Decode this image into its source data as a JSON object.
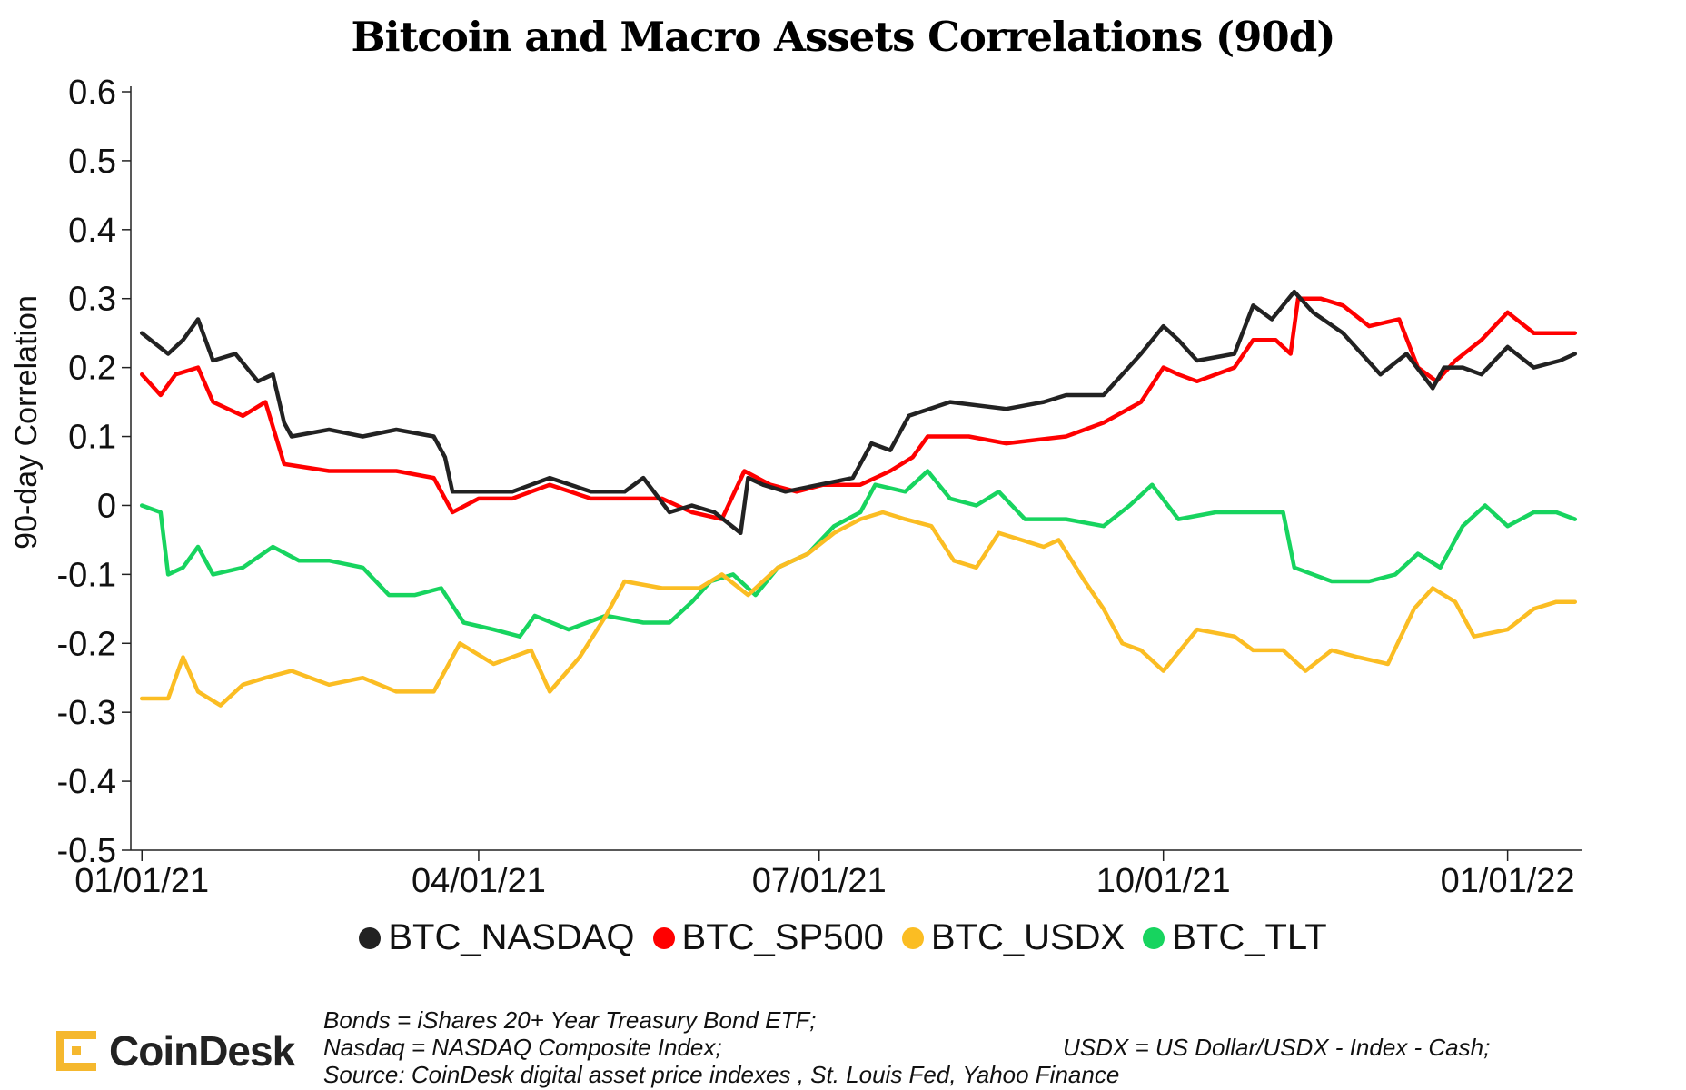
{
  "chart_data": {
    "type": "line",
    "title": "Bitcoin and Macro Assets Correlations (90d)",
    "ylabel": "90-day Correlation",
    "xlabel": "",
    "ylim": [
      -0.5,
      0.6
    ],
    "xlim": [
      "2020-12-30",
      "2022-01-21"
    ],
    "grid": false,
    "legend_position": "bottom",
    "y_ticks": [
      "0.6",
      "0.5",
      "0.4",
      "0.3",
      "0.2",
      "0.1",
      "0",
      "-0.1",
      "-0.2",
      "-0.3",
      "-0.4",
      "-0.5"
    ],
    "y_tick_values": [
      0.6,
      0.5,
      0.4,
      0.3,
      0.2,
      0.1,
      0,
      -0.1,
      -0.2,
      -0.3,
      -0.4,
      -0.5
    ],
    "x_ticks": [
      "01/01/21",
      "04/01/21",
      "07/01/21",
      "10/01/21",
      "01/01/22"
    ],
    "x_tick_dates": [
      "2021-01-01",
      "2021-04-01",
      "2021-07-01",
      "2021-10-01",
      "2022-01-01"
    ],
    "series": [
      {
        "name": "BTC_NASDAQ",
        "color": "#222222",
        "points": [
          [
            "2021-01-01",
            0.25
          ],
          [
            "2021-01-08",
            0.22
          ],
          [
            "2021-01-12",
            0.24
          ],
          [
            "2021-01-16",
            0.27
          ],
          [
            "2021-01-20",
            0.21
          ],
          [
            "2021-01-26",
            0.22
          ],
          [
            "2021-02-01",
            0.18
          ],
          [
            "2021-02-05",
            0.19
          ],
          [
            "2021-02-08",
            0.12
          ],
          [
            "2021-02-10",
            0.1
          ],
          [
            "2021-02-20",
            0.11
          ],
          [
            "2021-03-01",
            0.1
          ],
          [
            "2021-03-10",
            0.11
          ],
          [
            "2021-03-20",
            0.1
          ],
          [
            "2021-03-23",
            0.07
          ],
          [
            "2021-03-25",
            0.02
          ],
          [
            "2021-04-01",
            0.02
          ],
          [
            "2021-04-10",
            0.02
          ],
          [
            "2021-04-20",
            0.04
          ],
          [
            "2021-05-01",
            0.02
          ],
          [
            "2021-05-10",
            0.02
          ],
          [
            "2021-05-15",
            0.04
          ],
          [
            "2021-05-22",
            -0.01
          ],
          [
            "2021-05-28",
            0.0
          ],
          [
            "2021-06-03",
            -0.01
          ],
          [
            "2021-06-10",
            -0.04
          ],
          [
            "2021-06-12",
            0.04
          ],
          [
            "2021-06-16",
            0.03
          ],
          [
            "2021-06-22",
            0.02
          ],
          [
            "2021-07-01",
            0.03
          ],
          [
            "2021-07-10",
            0.04
          ],
          [
            "2021-07-15",
            0.09
          ],
          [
            "2021-07-20",
            0.08
          ],
          [
            "2021-07-25",
            0.13
          ],
          [
            "2021-08-05",
            0.15
          ],
          [
            "2021-08-20",
            0.14
          ],
          [
            "2021-08-30",
            0.15
          ],
          [
            "2021-09-05",
            0.16
          ],
          [
            "2021-09-15",
            0.16
          ],
          [
            "2021-09-25",
            0.22
          ],
          [
            "2021-10-01",
            0.26
          ],
          [
            "2021-10-05",
            0.24
          ],
          [
            "2021-10-10",
            0.21
          ],
          [
            "2021-10-20",
            0.22
          ],
          [
            "2021-10-25",
            0.29
          ],
          [
            "2021-10-30",
            0.27
          ],
          [
            "2021-11-05",
            0.31
          ],
          [
            "2021-11-10",
            0.28
          ],
          [
            "2021-11-18",
            0.25
          ],
          [
            "2021-11-28",
            0.19
          ],
          [
            "2021-12-05",
            0.22
          ],
          [
            "2021-12-12",
            0.17
          ],
          [
            "2021-12-15",
            0.2
          ],
          [
            "2021-12-20",
            0.2
          ],
          [
            "2021-12-25",
            0.19
          ],
          [
            "2022-01-01",
            0.23
          ],
          [
            "2022-01-08",
            0.2
          ],
          [
            "2022-01-15",
            0.21
          ],
          [
            "2022-01-19",
            0.22
          ]
        ]
      },
      {
        "name": "BTC_SP500",
        "color": "#ff0000",
        "points": [
          [
            "2021-01-01",
            0.19
          ],
          [
            "2021-01-06",
            0.16
          ],
          [
            "2021-01-10",
            0.19
          ],
          [
            "2021-01-16",
            0.2
          ],
          [
            "2021-01-20",
            0.15
          ],
          [
            "2021-01-28",
            0.13
          ],
          [
            "2021-02-03",
            0.15
          ],
          [
            "2021-02-08",
            0.06
          ],
          [
            "2021-02-20",
            0.05
          ],
          [
            "2021-03-01",
            0.05
          ],
          [
            "2021-03-10",
            0.05
          ],
          [
            "2021-03-20",
            0.04
          ],
          [
            "2021-03-25",
            -0.01
          ],
          [
            "2021-04-01",
            0.01
          ],
          [
            "2021-04-10",
            0.01
          ],
          [
            "2021-04-20",
            0.03
          ],
          [
            "2021-05-01",
            0.01
          ],
          [
            "2021-05-10",
            0.01
          ],
          [
            "2021-05-20",
            0.01
          ],
          [
            "2021-05-28",
            -0.01
          ],
          [
            "2021-06-05",
            -0.02
          ],
          [
            "2021-06-11",
            0.05
          ],
          [
            "2021-06-18",
            0.03
          ],
          [
            "2021-06-25",
            0.02
          ],
          [
            "2021-07-02",
            0.03
          ],
          [
            "2021-07-12",
            0.03
          ],
          [
            "2021-07-20",
            0.05
          ],
          [
            "2021-07-26",
            0.07
          ],
          [
            "2021-07-30",
            0.1
          ],
          [
            "2021-08-10",
            0.1
          ],
          [
            "2021-08-20",
            0.09
          ],
          [
            "2021-09-05",
            0.1
          ],
          [
            "2021-09-15",
            0.12
          ],
          [
            "2021-09-25",
            0.15
          ],
          [
            "2021-10-01",
            0.2
          ],
          [
            "2021-10-05",
            0.19
          ],
          [
            "2021-10-10",
            0.18
          ],
          [
            "2021-10-20",
            0.2
          ],
          [
            "2021-10-25",
            0.24
          ],
          [
            "2021-10-31",
            0.24
          ],
          [
            "2021-11-04",
            0.22
          ],
          [
            "2021-11-06",
            0.3
          ],
          [
            "2021-11-12",
            0.3
          ],
          [
            "2021-11-18",
            0.29
          ],
          [
            "2021-11-25",
            0.26
          ],
          [
            "2021-12-03",
            0.27
          ],
          [
            "2021-12-08",
            0.2
          ],
          [
            "2021-12-13",
            0.18
          ],
          [
            "2021-12-18",
            0.21
          ],
          [
            "2021-12-25",
            0.24
          ],
          [
            "2022-01-01",
            0.28
          ],
          [
            "2022-01-08",
            0.25
          ],
          [
            "2022-01-15",
            0.25
          ],
          [
            "2022-01-19",
            0.25
          ]
        ]
      },
      {
        "name": "BTC_USDX",
        "color": "#fbbd23",
        "points": [
          [
            "2021-01-01",
            -0.28
          ],
          [
            "2021-01-08",
            -0.28
          ],
          [
            "2021-01-12",
            -0.22
          ],
          [
            "2021-01-16",
            -0.27
          ],
          [
            "2021-01-22",
            -0.29
          ],
          [
            "2021-01-28",
            -0.26
          ],
          [
            "2021-02-03",
            -0.25
          ],
          [
            "2021-02-10",
            -0.24
          ],
          [
            "2021-02-20",
            -0.26
          ],
          [
            "2021-03-01",
            -0.25
          ],
          [
            "2021-03-10",
            -0.27
          ],
          [
            "2021-03-20",
            -0.27
          ],
          [
            "2021-03-27",
            -0.2
          ],
          [
            "2021-04-05",
            -0.23
          ],
          [
            "2021-04-15",
            -0.21
          ],
          [
            "2021-04-20",
            -0.27
          ],
          [
            "2021-04-28",
            -0.22
          ],
          [
            "2021-05-05",
            -0.16
          ],
          [
            "2021-05-10",
            -0.11
          ],
          [
            "2021-05-20",
            -0.12
          ],
          [
            "2021-05-30",
            -0.12
          ],
          [
            "2021-06-05",
            -0.1
          ],
          [
            "2021-06-12",
            -0.13
          ],
          [
            "2021-06-20",
            -0.09
          ],
          [
            "2021-06-28",
            -0.07
          ],
          [
            "2021-07-05",
            -0.04
          ],
          [
            "2021-07-12",
            -0.02
          ],
          [
            "2021-07-18",
            -0.01
          ],
          [
            "2021-07-24",
            -0.02
          ],
          [
            "2021-07-31",
            -0.03
          ],
          [
            "2021-08-06",
            -0.08
          ],
          [
            "2021-08-12",
            -0.09
          ],
          [
            "2021-08-18",
            -0.04
          ],
          [
            "2021-08-24",
            -0.05
          ],
          [
            "2021-08-30",
            -0.06
          ],
          [
            "2021-09-03",
            -0.05
          ],
          [
            "2021-09-10",
            -0.11
          ],
          [
            "2021-09-15",
            -0.15
          ],
          [
            "2021-09-20",
            -0.2
          ],
          [
            "2021-09-25",
            -0.21
          ],
          [
            "2021-10-01",
            -0.24
          ],
          [
            "2021-10-10",
            -0.18
          ],
          [
            "2021-10-20",
            -0.19
          ],
          [
            "2021-10-25",
            -0.21
          ],
          [
            "2021-11-02",
            -0.21
          ],
          [
            "2021-11-08",
            -0.24
          ],
          [
            "2021-11-15",
            -0.21
          ],
          [
            "2021-11-22",
            -0.22
          ],
          [
            "2021-11-30",
            -0.23
          ],
          [
            "2021-12-07",
            -0.15
          ],
          [
            "2021-12-12",
            -0.12
          ],
          [
            "2021-12-18",
            -0.14
          ],
          [
            "2021-12-23",
            -0.19
          ],
          [
            "2022-01-01",
            -0.18
          ],
          [
            "2022-01-08",
            -0.15
          ],
          [
            "2022-01-14",
            -0.14
          ],
          [
            "2022-01-19",
            -0.14
          ]
        ]
      },
      {
        "name": "BTC_TLT",
        "color": "#17d45f",
        "points": [
          [
            "2021-01-01",
            0.0
          ],
          [
            "2021-01-06",
            -0.01
          ],
          [
            "2021-01-08",
            -0.1
          ],
          [
            "2021-01-12",
            -0.09
          ],
          [
            "2021-01-16",
            -0.06
          ],
          [
            "2021-01-20",
            -0.1
          ],
          [
            "2021-01-28",
            -0.09
          ],
          [
            "2021-02-05",
            -0.06
          ],
          [
            "2021-02-12",
            -0.08
          ],
          [
            "2021-02-20",
            -0.08
          ],
          [
            "2021-03-01",
            -0.09
          ],
          [
            "2021-03-08",
            -0.13
          ],
          [
            "2021-03-15",
            -0.13
          ],
          [
            "2021-03-22",
            -0.12
          ],
          [
            "2021-03-28",
            -0.17
          ],
          [
            "2021-04-05",
            -0.18
          ],
          [
            "2021-04-12",
            -0.19
          ],
          [
            "2021-04-16",
            -0.16
          ],
          [
            "2021-04-25",
            -0.18
          ],
          [
            "2021-05-05",
            -0.16
          ],
          [
            "2021-05-15",
            -0.17
          ],
          [
            "2021-05-22",
            -0.17
          ],
          [
            "2021-05-28",
            -0.14
          ],
          [
            "2021-06-02",
            -0.11
          ],
          [
            "2021-06-08",
            -0.1
          ],
          [
            "2021-06-14",
            -0.13
          ],
          [
            "2021-06-20",
            -0.09
          ],
          [
            "2021-06-28",
            -0.07
          ],
          [
            "2021-07-05",
            -0.03
          ],
          [
            "2021-07-12",
            -0.01
          ],
          [
            "2021-07-16",
            0.03
          ],
          [
            "2021-07-24",
            0.02
          ],
          [
            "2021-07-30",
            0.05
          ],
          [
            "2021-08-05",
            0.01
          ],
          [
            "2021-08-12",
            0.0
          ],
          [
            "2021-08-18",
            0.02
          ],
          [
            "2021-08-25",
            -0.02
          ],
          [
            "2021-09-05",
            -0.02
          ],
          [
            "2021-09-15",
            -0.03
          ],
          [
            "2021-09-22",
            0.0
          ],
          [
            "2021-09-28",
            0.03
          ],
          [
            "2021-10-05",
            -0.02
          ],
          [
            "2021-10-15",
            -0.01
          ],
          [
            "2021-10-25",
            -0.01
          ],
          [
            "2021-11-02",
            -0.01
          ],
          [
            "2021-11-05",
            -0.09
          ],
          [
            "2021-11-15",
            -0.11
          ],
          [
            "2021-11-25",
            -0.11
          ],
          [
            "2021-12-02",
            -0.1
          ],
          [
            "2021-12-08",
            -0.07
          ],
          [
            "2021-12-14",
            -0.09
          ],
          [
            "2021-12-20",
            -0.03
          ],
          [
            "2021-12-26",
            0.0
          ],
          [
            "2022-01-01",
            -0.03
          ],
          [
            "2022-01-08",
            -0.01
          ],
          [
            "2022-01-14",
            -0.01
          ],
          [
            "2022-01-19",
            -0.02
          ]
        ]
      }
    ]
  },
  "notes": {
    "line1": "Bonds = iShares 20+ Year Treasury Bond ETF;",
    "line2": "Nasdaq = NASDAQ Composite Index;",
    "line2b": "USDX = US Dollar/USDX - Index - Cash;",
    "line3": "Source: CoinDesk digital asset price indexes , St. Louis Fed, Yahoo Finance"
  },
  "logo": {
    "text": "CoinDesk",
    "color": "#f5b82e"
  }
}
